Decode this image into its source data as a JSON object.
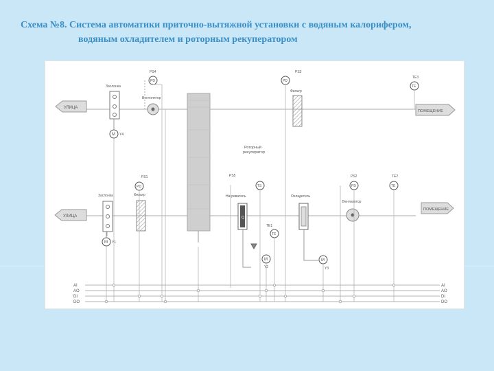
{
  "title": {
    "line1": "Схема №8. Система автоматики приточно-вытяжной установки с водяным калорифером,",
    "line2": "водяным охладителем и роторным рекуператором"
  },
  "diagram": {
    "outside_top": "УЛИЦА",
    "outside_bottom": "УЛИЦА",
    "room_top": "ПОМЕЩЕНИЕ",
    "room_bottom": "ПОМЕЩЕНИЕ",
    "damper_top": "Заслонка",
    "damper_bottom": "Заслонка",
    "fan_top": "Вентилятор",
    "fan_bottom": "Вентилятор",
    "filter_top": "Фильтр",
    "filter_bottom": "Фильтр",
    "heater": "Нагреватель",
    "cooler": "Охладитель",
    "rotor_line1": "Роторный",
    "rotor_line2": "рекуператор",
    "sensors": {
      "ps4": "PS4",
      "ps3": "PS3",
      "ps1": "PS1",
      "ps2": "PS2",
      "ps5": "PS5",
      "te1": "TE1",
      "te2": "TE2",
      "te3": "TE3",
      "pd": "PD",
      "te": "TE",
      "ts": "TS"
    },
    "actuators": {
      "m": "M",
      "q": "Q",
      "y1": "Y1",
      "y2": "Y2",
      "y3": "Y3",
      "y4": "Y4"
    },
    "bus": [
      "AI",
      "AO",
      "DI",
      "DO"
    ]
  },
  "colors": {
    "background": "#c9e7f7",
    "title": "#3b8fc7",
    "line": "#9a9a9a",
    "accent": "#3a3a3a"
  }
}
